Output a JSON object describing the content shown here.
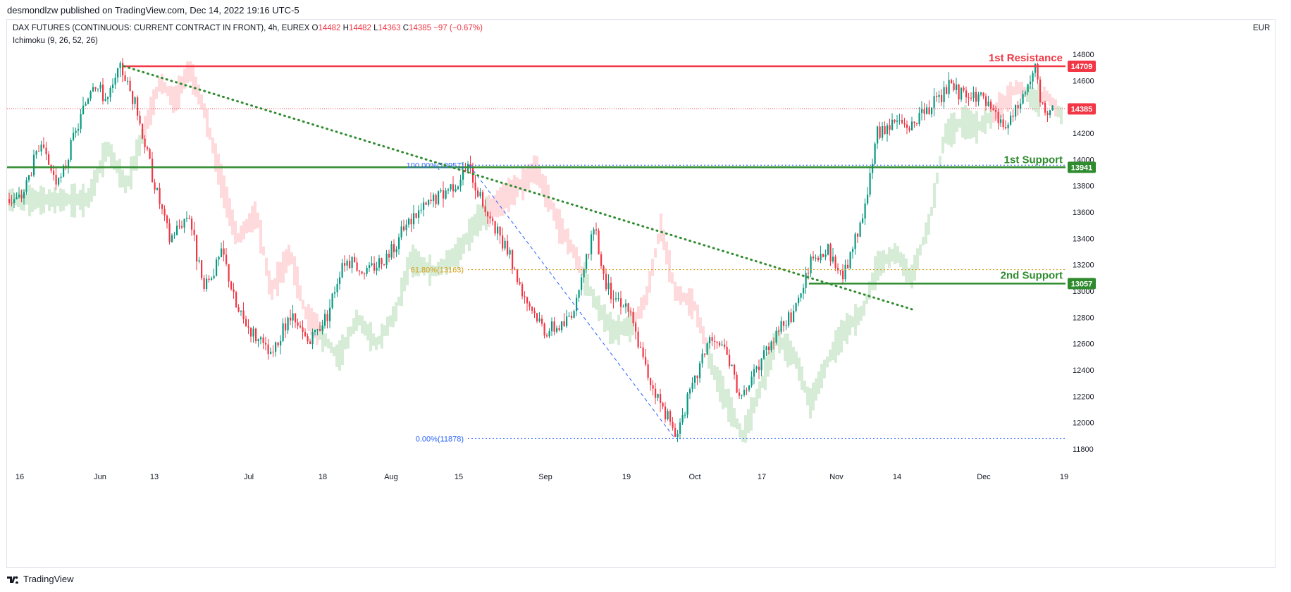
{
  "header": {
    "published": "desmondlzw published on TradingView.com, Dec 14, 2022 19:16 UTC-5"
  },
  "legend": {
    "symbol": "DAX FUTURES (CONTINUOUS: CURRENT CONTRACT IN FRONT), 4h, EUREX",
    "o_label": "O",
    "o_value": "14482",
    "h_label": "H",
    "h_value": "14482",
    "l_label": "L",
    "l_value": "14363",
    "c_label": "C",
    "c_value": "14385",
    "change": "−97 (−0.67%)",
    "indicator": "Ichimoku (9, 26, 52, 26)"
  },
  "currency": "EUR",
  "footer": {
    "brand": "TradingView"
  },
  "colors": {
    "up": "#089981",
    "down": "#f23645",
    "resistance": "#f23645",
    "support": "#2e8b2e",
    "fib_blue": "#2962ff",
    "fib_orange": "#d4a017",
    "trend": "#2e8b2e",
    "cloud_green": "#c8e6c9",
    "cloud_red": "#ffcdd2"
  },
  "chart_data": {
    "type": "candlestick",
    "timeframe": "4h",
    "ylim": [
      11700,
      14900
    ],
    "y_ticks": [
      11800,
      12000,
      12200,
      12400,
      12600,
      12800,
      13000,
      13200,
      13400,
      13600,
      13800,
      14000,
      14200,
      14400,
      14600,
      14800
    ],
    "x_ticks": [
      "16",
      "Jun",
      "13",
      "Jul",
      "18",
      "Aug",
      "15",
      "Sep",
      "19",
      "Oct",
      "17",
      "Nov",
      "14",
      "Dec",
      "19"
    ],
    "last_price": 14385,
    "levels": [
      {
        "name": "1st Resistance",
        "value": 14709
      },
      {
        "name": "1st Support",
        "value": 13941
      },
      {
        "name": "2nd Support",
        "value": 13057
      }
    ],
    "fibonacci": [
      {
        "label": "100.00%(13957)",
        "value": 13957
      },
      {
        "label": "61.80%(13163)",
        "value": 13163
      },
      {
        "label": "0.00%(11878)",
        "value": 11878
      }
    ],
    "price_path": [
      [
        "2022-05-16",
        13700
      ],
      [
        "2022-05-20",
        14100
      ],
      [
        "2022-05-24",
        13800
      ],
      [
        "2022-05-27",
        14150
      ],
      [
        "2022-05-31",
        14600
      ],
      [
        "2022-06-03",
        14450
      ],
      [
        "2022-06-06",
        14700
      ],
      [
        "2022-06-09",
        14400
      ],
      [
        "2022-06-13",
        13800
      ],
      [
        "2022-06-16",
        13400
      ],
      [
        "2022-06-20",
        13600
      ],
      [
        "2022-06-23",
        13000
      ],
      [
        "2022-06-27",
        13300
      ],
      [
        "2022-06-30",
        12850
      ],
      [
        "2022-07-04",
        12650
      ],
      [
        "2022-07-07",
        12500
      ],
      [
        "2022-07-11",
        12800
      ],
      [
        "2022-07-15",
        12600
      ],
      [
        "2022-07-19",
        12850
      ],
      [
        "2022-07-22",
        13250
      ],
      [
        "2022-07-27",
        13150
      ],
      [
        "2022-08-01",
        13300
      ],
      [
        "2022-08-05",
        13550
      ],
      [
        "2022-08-10",
        13700
      ],
      [
        "2022-08-15",
        13850
      ],
      [
        "2022-08-17",
        13950
      ],
      [
        "2022-08-22",
        13500
      ],
      [
        "2022-08-25",
        13300
      ],
      [
        "2022-08-29",
        12950
      ],
      [
        "2022-09-02",
        12700
      ],
      [
        "2022-09-06",
        12750
      ],
      [
        "2022-09-09",
        12950
      ],
      [
        "2022-09-12",
        13500
      ],
      [
        "2022-09-15",
        13000
      ],
      [
        "2022-09-19",
        12900
      ],
      [
        "2022-09-23",
        12400
      ],
      [
        "2022-09-26",
        12150
      ],
      [
        "2022-09-29",
        11900
      ],
      [
        "2022-10-03",
        12300
      ],
      [
        "2022-10-06",
        12650
      ],
      [
        "2022-10-10",
        12500
      ],
      [
        "2022-10-13",
        12150
      ],
      [
        "2022-10-17",
        12500
      ],
      [
        "2022-10-20",
        12700
      ],
      [
        "2022-10-24",
        12850
      ],
      [
        "2022-10-27",
        13200
      ],
      [
        "2022-10-31",
        13300
      ],
      [
        "2022-11-03",
        13100
      ],
      [
        "2022-11-07",
        13550
      ],
      [
        "2022-11-10",
        14200
      ],
      [
        "2022-11-14",
        14300
      ],
      [
        "2022-11-17",
        14250
      ],
      [
        "2022-11-22",
        14420
      ],
      [
        "2022-11-25",
        14560
      ],
      [
        "2022-11-29",
        14450
      ],
      [
        "2022-12-01",
        14500
      ],
      [
        "2022-12-05",
        14300
      ],
      [
        "2022-12-07",
        14250
      ],
      [
        "2022-12-09",
        14380
      ],
      [
        "2022-12-13",
        14709
      ],
      [
        "2022-12-14",
        14385
      ]
    ]
  }
}
